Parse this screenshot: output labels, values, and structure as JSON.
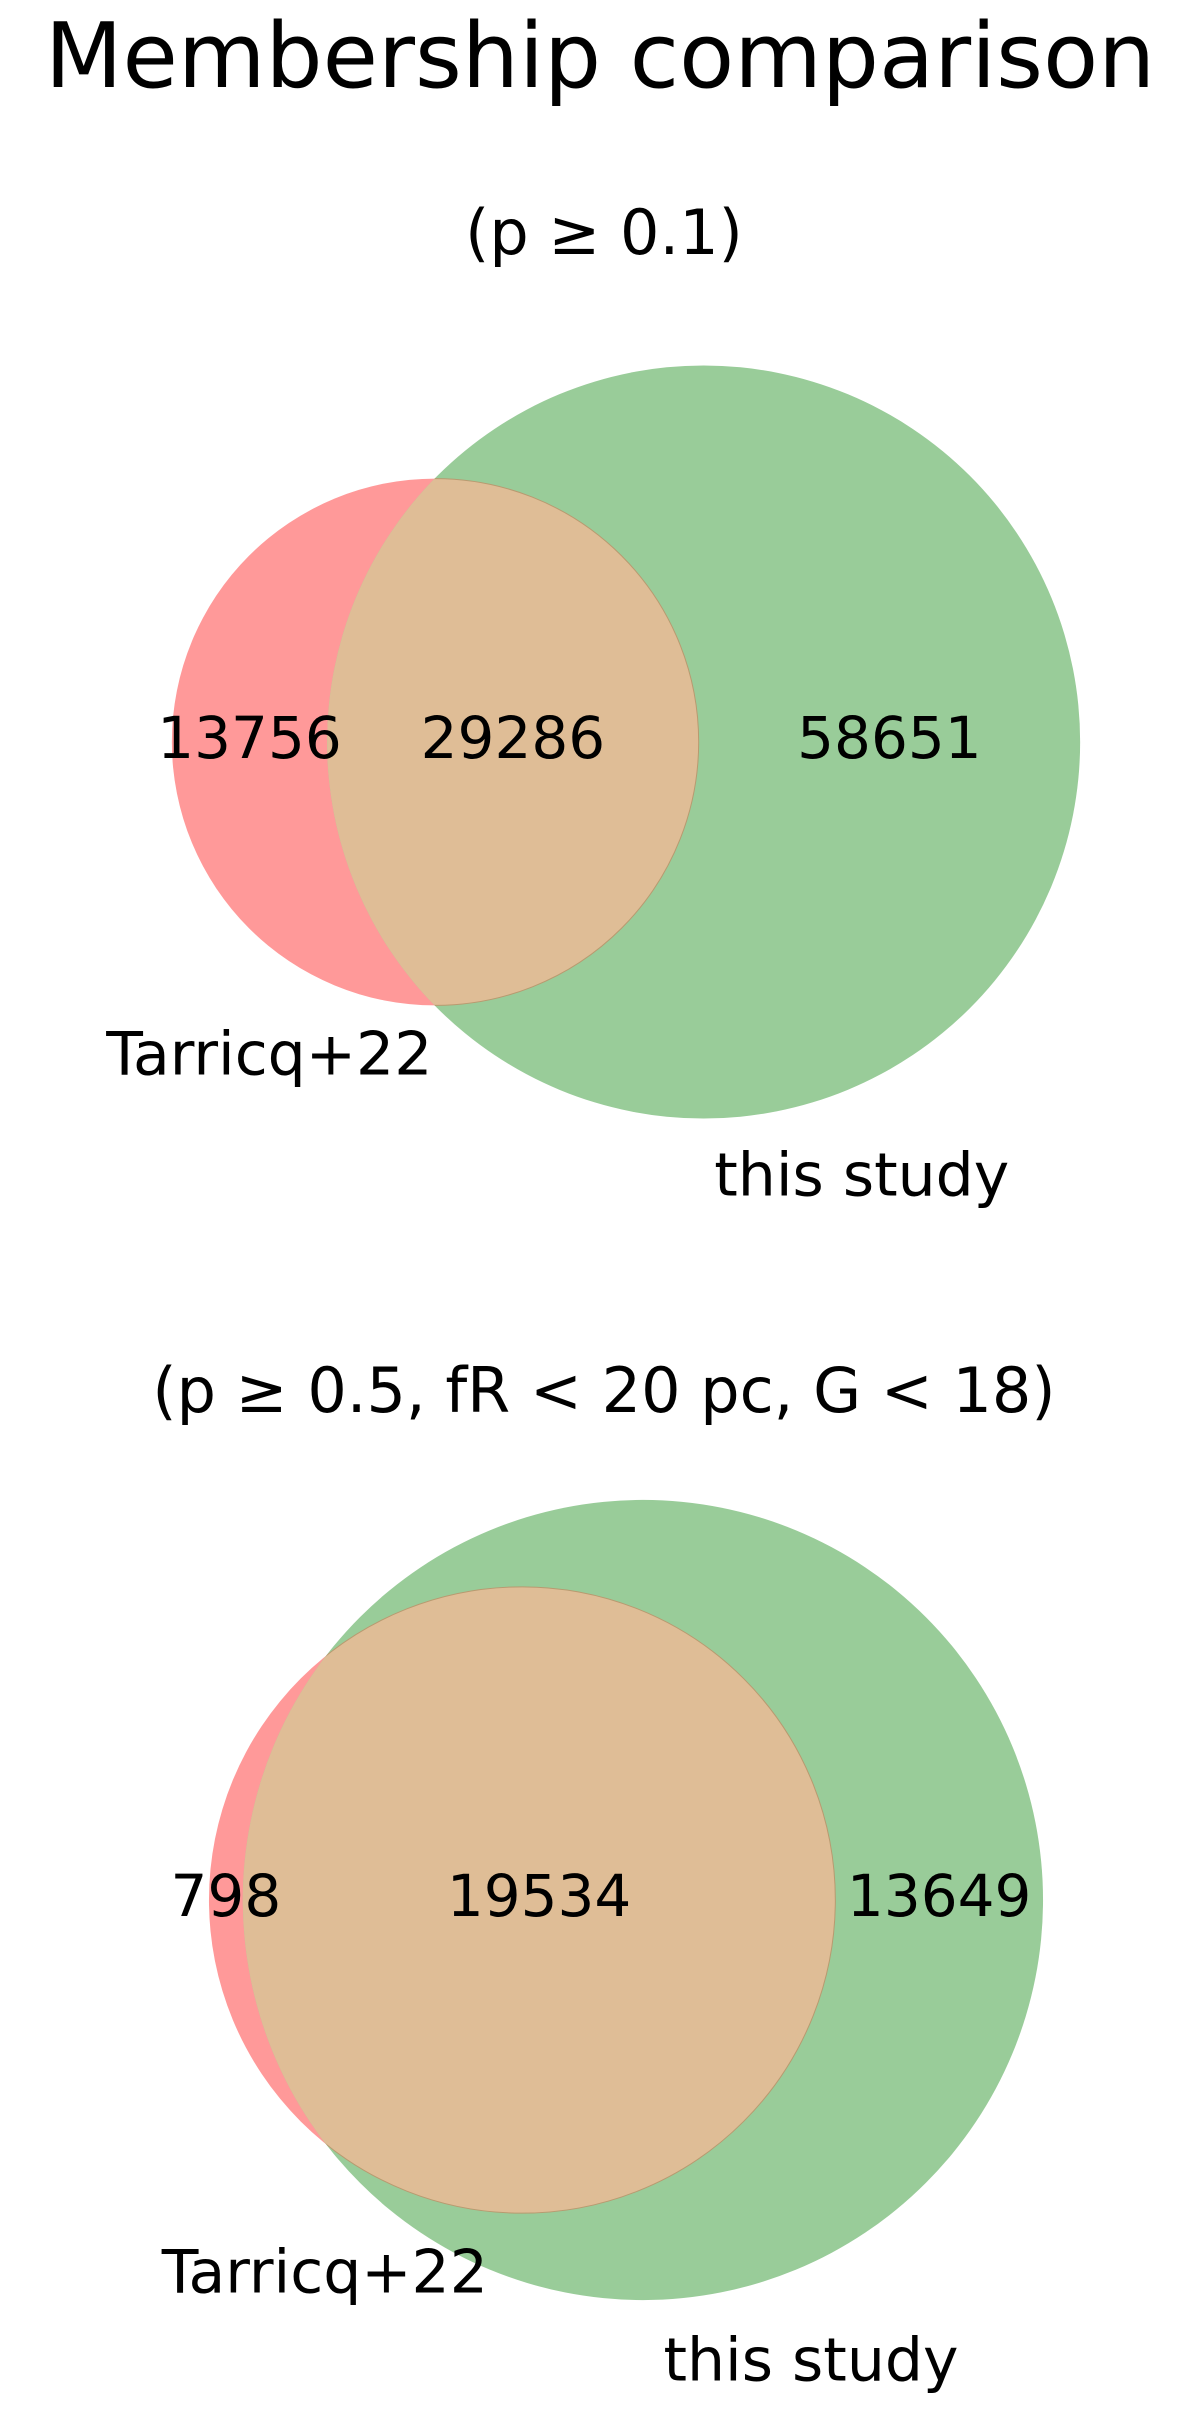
{
  "title": "Membership comparison",
  "chart_data": [
    {
      "type": "venn",
      "title": "(p ≥ 0.1)",
      "sets": [
        "Tarricq+22",
        "this study"
      ],
      "values": [
        13756,
        29286,
        58651
      ],
      "set_colors": [
        "#ff9999",
        "#99cc99"
      ],
      "overlap_color": "#dfbd96"
    },
    {
      "type": "venn",
      "title": "(p ≥ 0.5, fR < 20 pc, G < 18)",
      "sets": [
        "Tarricq+22",
        "this study"
      ],
      "values": [
        798,
        19534,
        13649
      ],
      "set_colors": [
        "#ff9999",
        "#99cc99"
      ],
      "overlap_color": "#dfbd96"
    }
  ]
}
